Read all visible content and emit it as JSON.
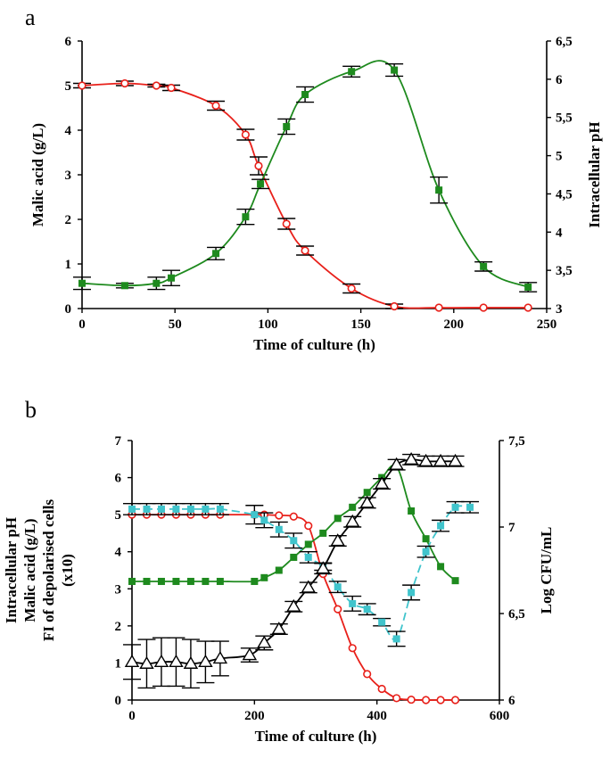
{
  "chart_data": [
    {
      "panel": "a",
      "type": "line",
      "xlabel": "Time of culture  (h)",
      "ylabel": "Malic acid  (g/L)",
      "y2label": "Intracellular pH",
      "xlim": [
        0,
        250
      ],
      "xticks": [
        "0",
        "50",
        "100",
        "150",
        "200",
        "250"
      ],
      "ylim": [
        0,
        6
      ],
      "yticks": [
        "0",
        "1",
        "2",
        "3",
        "4",
        "5",
        "6"
      ],
      "y2lim": [
        3,
        6.5
      ],
      "y2ticks": [
        "3",
        "3,5",
        "4",
        "4,5",
        "5",
        "5,5",
        "6",
        "6,5"
      ],
      "grid": false,
      "series": [
        {
          "axis": "left",
          "color": "#e8201a",
          "marker": "open-circle",
          "x": [
            0,
            23,
            40,
            48,
            72,
            88,
            95,
            110,
            120,
            145,
            168,
            192,
            216,
            240
          ],
          "y": [
            5.0,
            5.05,
            5.0,
            4.95,
            4.55,
            3.9,
            3.2,
            1.9,
            1.3,
            0.45,
            0.05,
            0.02,
            0.02,
            0.02
          ],
          "err": [
            0.05,
            0.05,
            0.03,
            0.06,
            0.1,
            0.12,
            0.2,
            0.12,
            0.1,
            0.1,
            0.05,
            0,
            0,
            0
          ]
        },
        {
          "axis": "right",
          "color": "#1e8a1e",
          "marker": "filled-square",
          "x": [
            0,
            23,
            40,
            48,
            72,
            88,
            96,
            110,
            120,
            145,
            168,
            192,
            216,
            240
          ],
          "y": [
            3.33,
            3.3,
            3.33,
            3.4,
            3.72,
            4.2,
            4.63,
            5.38,
            5.8,
            6.1,
            6.12,
            4.55,
            3.55,
            3.28
          ],
          "err": [
            0.08,
            0.03,
            0.08,
            0.1,
            0.08,
            0.1,
            0.06,
            0.1,
            0.1,
            0.07,
            0.08,
            0.17,
            0.06,
            0.06
          ]
        }
      ]
    },
    {
      "panel": "b",
      "type": "line",
      "xlabel": "Time of culture  (h)",
      "ylabel_lines": [
        "Intracellular pH",
        "Malic acid  (g/L)",
        "FI of depolarised cells",
        "(x10)"
      ],
      "y2label": "Log CFU/mL",
      "xlim": [
        0,
        600
      ],
      "xticks": [
        "0",
        "200",
        "400",
        "600"
      ],
      "ylim": [
        0,
        7
      ],
      "yticks": [
        "0",
        "1",
        "2",
        "3",
        "4",
        "5",
        "6",
        "7"
      ],
      "y2lim": [
        6,
        7.5
      ],
      "y2ticks": [
        "6",
        "6,5",
        "7",
        "7,5"
      ],
      "grid": false,
      "series": [
        {
          "axis": "left",
          "color": "#e8201a",
          "marker": "open-circle",
          "x": [
            0,
            24,
            48,
            72,
            96,
            120,
            144,
            200,
            216,
            240,
            264,
            288,
            312,
            336,
            360,
            384,
            408,
            432,
            456,
            480,
            504,
            528
          ],
          "y": [
            5.0,
            5.0,
            5.0,
            5.0,
            5.0,
            5.0,
            5.0,
            5.0,
            5.0,
            4.98,
            4.95,
            4.7,
            3.4,
            2.45,
            1.4,
            0.7,
            0.3,
            0.05,
            0.01,
            0.0,
            0.0,
            0.0
          ]
        },
        {
          "axis": "left",
          "color": "#1e8a1e",
          "marker": "filled-square",
          "x": [
            0,
            24,
            48,
            72,
            96,
            120,
            144,
            200,
            216,
            240,
            264,
            288,
            312,
            336,
            360,
            384,
            408,
            432,
            456,
            480,
            504,
            528
          ],
          "y": [
            3.2,
            3.2,
            3.2,
            3.2,
            3.2,
            3.2,
            3.2,
            3.2,
            3.3,
            3.5,
            3.85,
            4.2,
            4.5,
            4.9,
            5.2,
            5.6,
            6.0,
            6.3,
            5.1,
            4.35,
            3.6,
            3.22
          ]
        },
        {
          "axis": "left",
          "color": "#40c4cc",
          "marker": "filled-square",
          "dashed": true,
          "x": [
            0,
            24,
            48,
            72,
            96,
            120,
            144,
            200,
            216,
            240,
            264,
            288,
            312,
            336,
            360,
            384,
            408,
            432,
            456,
            480,
            504,
            528,
            552
          ],
          "y": [
            5.15,
            5.15,
            5.15,
            5.15,
            5.15,
            5.15,
            5.15,
            5.0,
            4.85,
            4.6,
            4.3,
            3.85,
            3.6,
            3.05,
            2.6,
            2.45,
            2.1,
            1.65,
            2.9,
            4.0,
            4.7,
            5.2,
            5.2
          ],
          "err": [
            0.15,
            0.15,
            0.15,
            0.15,
            0.15,
            0.15,
            0.15,
            0.25,
            0.2,
            0.2,
            0.2,
            0.15,
            0.1,
            0.15,
            0.2,
            0.15,
            0.1,
            0.2,
            0.2,
            0.15,
            0.15,
            0.15,
            0.15
          ]
        },
        {
          "axis": "right",
          "color": "#000000",
          "marker": "open-triangle",
          "x": [
            0,
            24,
            48,
            72,
            96,
            120,
            144,
            192,
            216,
            240,
            264,
            288,
            312,
            336,
            360,
            384,
            408,
            432,
            456,
            480,
            504,
            528
          ],
          "y": [
            6.22,
            6.21,
            6.22,
            6.22,
            6.21,
            6.22,
            6.24,
            6.26,
            6.33,
            6.41,
            6.54,
            6.65,
            6.76,
            6.92,
            7.03,
            7.14,
            7.25,
            7.36,
            7.39,
            7.38,
            7.38,
            7.38
          ],
          "err": [
            0.1,
            0.14,
            0.14,
            0.14,
            0.14,
            0.12,
            0.1,
            0.04,
            0.04,
            0.03,
            0.03,
            0.03,
            0.03,
            0.03,
            0.03,
            0.03,
            0.03,
            0.03,
            0.03,
            0.03,
            0.03,
            0.03
          ]
        }
      ]
    }
  ]
}
